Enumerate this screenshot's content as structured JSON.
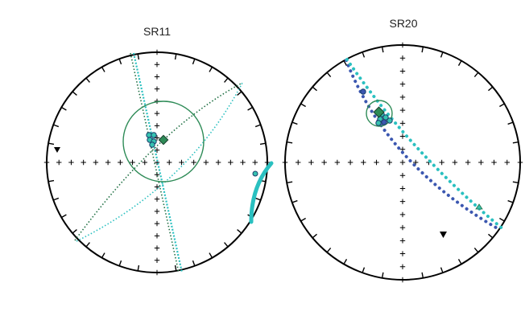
{
  "figure": {
    "panels": [
      {
        "id": "sr11",
        "title": "SR11"
      },
      {
        "id": "sr20",
        "title": "SR20"
      }
    ]
  },
  "colors": {
    "frame": "#000000",
    "cross": "#000000",
    "mean": "#2e8b57",
    "confidence_circle": "#2e8b57",
    "great_circle_dark": "#1f6f43",
    "great_circle_teal": "#2ac0c0",
    "great_circle_blue": "#3b57b0",
    "sample_fill": "#36c2b0",
    "sample_stroke": "#1a3f6b",
    "triangle": "#000000"
  },
  "icons": {
    "triangle_marker": "black-down-triangle-icon",
    "mean_marker": "green-diamond-icon",
    "sample_marker": "teal-circle-icon"
  }
}
